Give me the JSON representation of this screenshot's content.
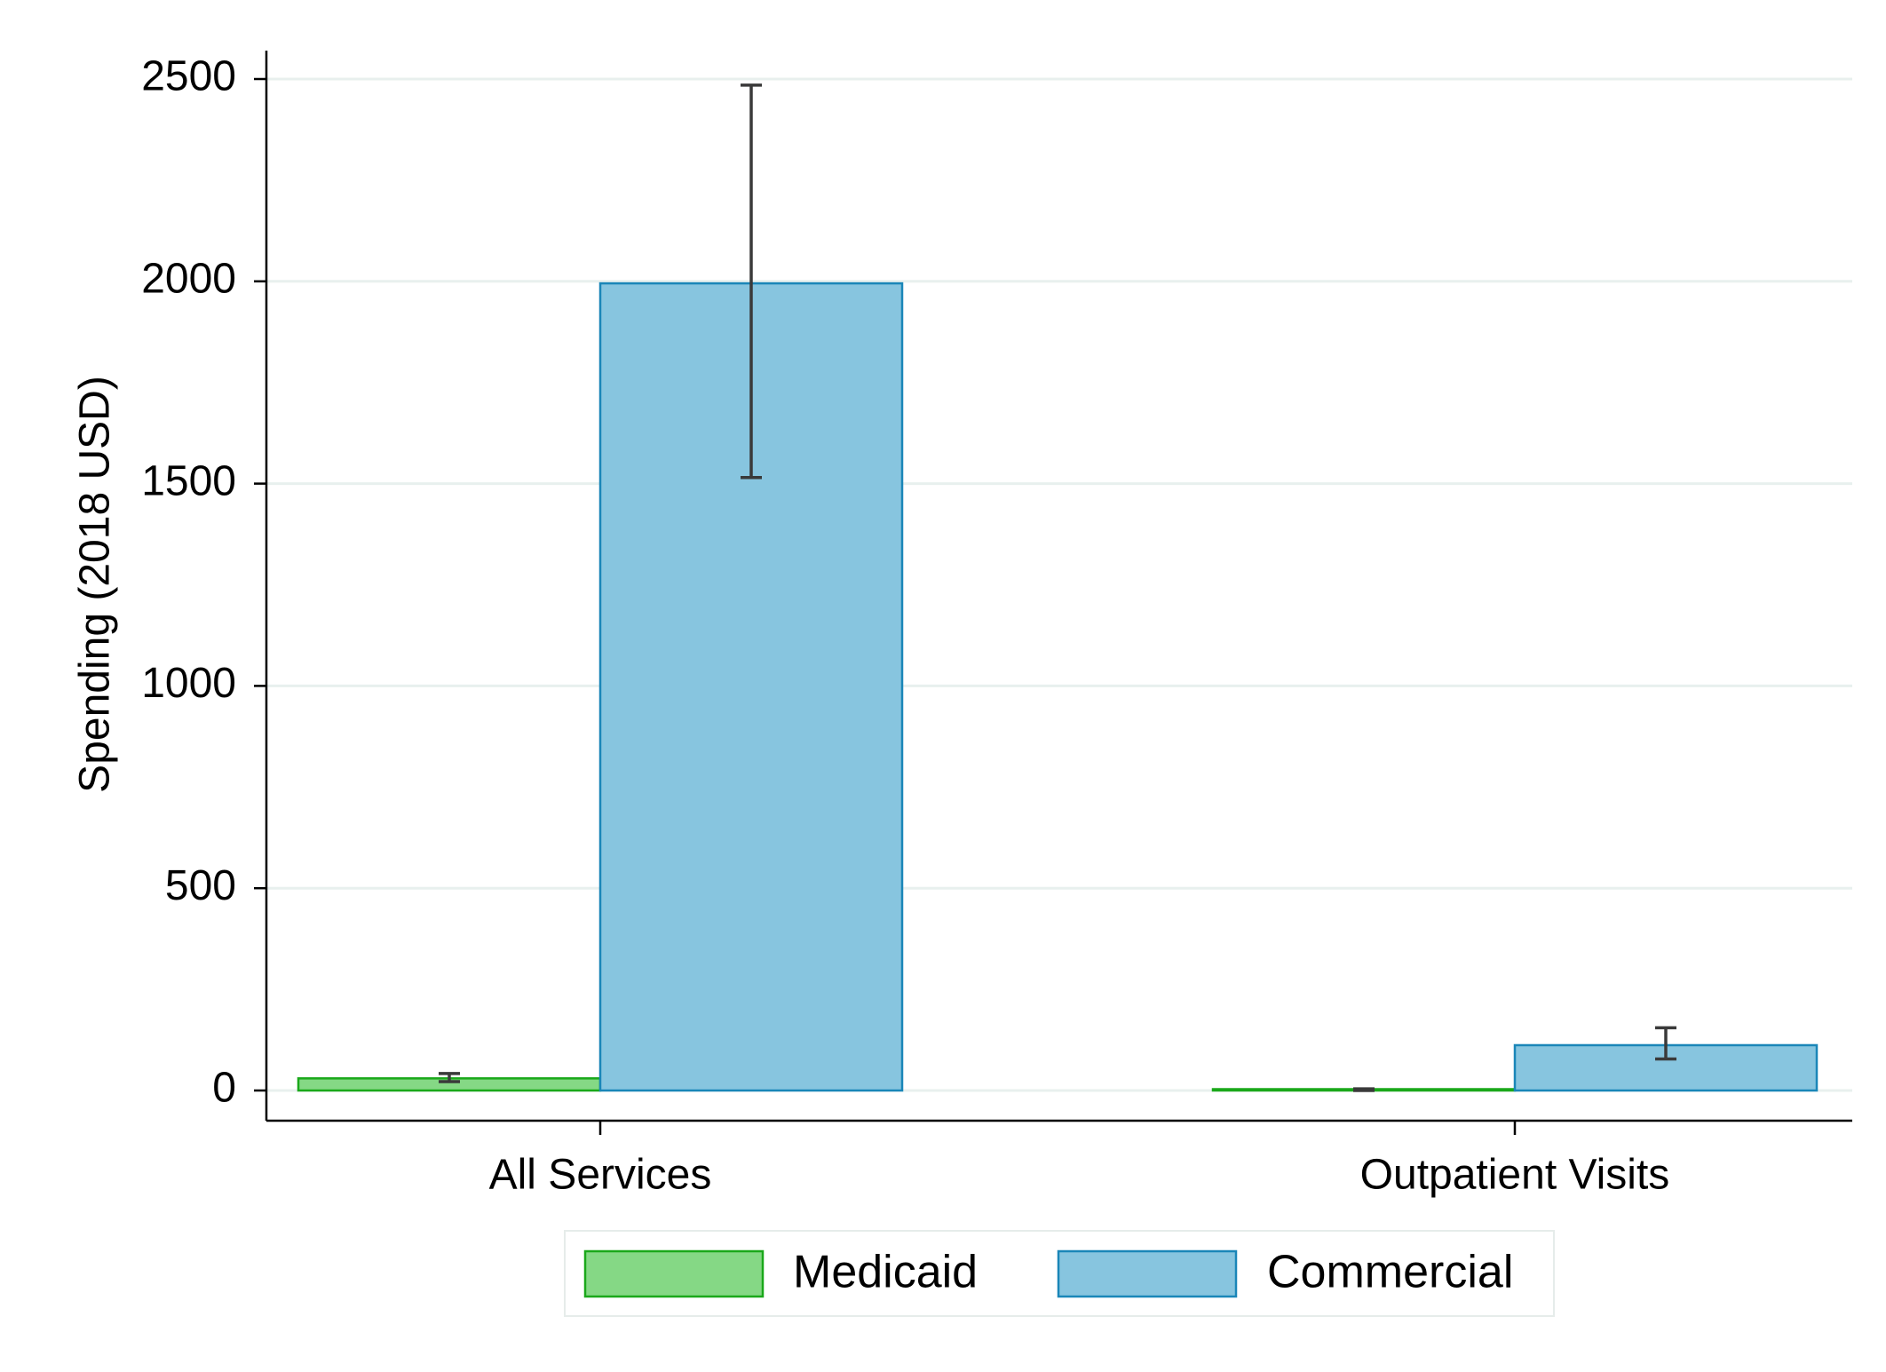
{
  "chart_data": {
    "type": "bar",
    "title": "",
    "xlabel": "",
    "ylabel": "Spending (2018 USD)",
    "ylim": [
      0,
      2500
    ],
    "yticks": [
      0,
      500,
      1000,
      1500,
      2000,
      2500
    ],
    "ytick_labels": [
      "0",
      "500",
      "1000",
      "1500",
      "2000",
      "2500"
    ],
    "grid": true,
    "legend_position": "bottom",
    "categories": [
      "All Services",
      "Outpatient Visits"
    ],
    "series": [
      {
        "name": "Medicaid",
        "values": [
          30,
          2
        ],
        "error_low": [
          22,
          0
        ],
        "error_high": [
          42,
          4
        ],
        "fill": "#85d885",
        "stroke": "#1aa81a"
      },
      {
        "name": "Commercial",
        "values": [
          1995,
          112
        ],
        "error_low": [
          1515,
          78
        ],
        "error_high": [
          2485,
          155
        ],
        "fill": "#87c5df",
        "stroke": "#1a86b8"
      }
    ]
  }
}
